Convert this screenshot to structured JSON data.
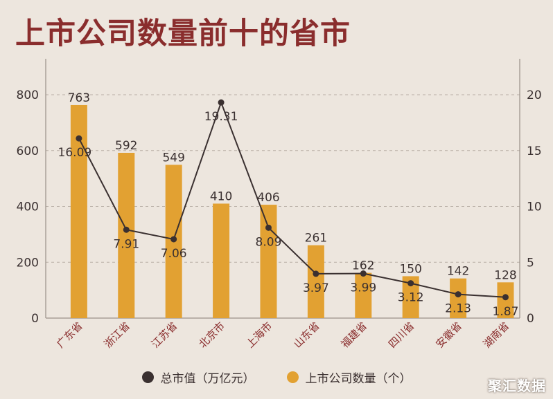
{
  "title": "上市公司数量前十的省市",
  "watermark": "聚汇数据",
  "colors": {
    "bar": "#e2a132",
    "line": "#3a3030",
    "title": "#8a2d2d",
    "axis_label": "#8a2d2d"
  },
  "legend": [
    {
      "label": "总市值（万亿元）",
      "color": "#3a3030"
    },
    {
      "label": "上市公司数量（个）",
      "color": "#e2a132"
    }
  ],
  "chart_data": {
    "type": "bar",
    "categories": [
      "广东省",
      "浙江省",
      "江苏省",
      "北京市",
      "上海市",
      "山东省",
      "福建省",
      "四川省",
      "安徽省",
      "湖南省"
    ],
    "series": [
      {
        "name": "上市公司数量（个）",
        "type": "bar",
        "axis": "left",
        "values": [
          763,
          592,
          549,
          410,
          406,
          261,
          162,
          150,
          142,
          128
        ],
        "labels": [
          "763",
          "592",
          "549",
          "410",
          "406",
          "261",
          "162",
          "150",
          "142",
          "128"
        ]
      },
      {
        "name": "总市值（万亿元）",
        "type": "line",
        "axis": "right",
        "values": [
          16.09,
          7.91,
          7.06,
          19.31,
          8.09,
          3.97,
          3.99,
          3.12,
          2.13,
          1.87
        ],
        "labels": [
          "16.09",
          "7.91",
          "7.06",
          "19.31",
          "8.09",
          "3.97",
          "3.99",
          "3.12",
          "2.13",
          "1.87"
        ]
      }
    ],
    "ylim": [
      0,
      800
    ],
    "y2lim": [
      0,
      20
    ],
    "yticks": [
      "0",
      "200",
      "400",
      "600",
      "800"
    ],
    "y2ticks": [
      "0",
      "5",
      "10",
      "15",
      "20"
    ],
    "grid": true,
    "legend_position": "bottom"
  }
}
